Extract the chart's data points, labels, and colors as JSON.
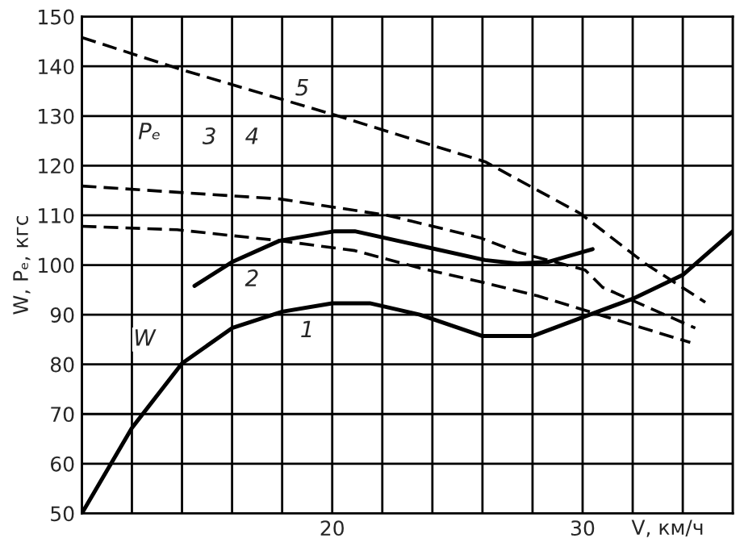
{
  "chart_data": {
    "type": "line",
    "xlabel": "V, км/ч",
    "ylabel": "W, Pₑ, кгс",
    "xlim": [
      10,
      36
    ],
    "ylim": [
      50,
      150
    ],
    "xticks": [
      {
        "value": 10,
        "label": null
      },
      {
        "value": 12,
        "label": null
      },
      {
        "value": 14,
        "label": null
      },
      {
        "value": 16,
        "label": null
      },
      {
        "value": 18,
        "label": null
      },
      {
        "value": 20,
        "label": "20"
      },
      {
        "value": 22,
        "label": null
      },
      {
        "value": 24,
        "label": null
      },
      {
        "value": 26,
        "label": null
      },
      {
        "value": 28,
        "label": null
      },
      {
        "value": 30,
        "label": "30"
      },
      {
        "value": 32,
        "label": null
      },
      {
        "value": 34,
        "label": null
      },
      {
        "value": 36,
        "label": null
      }
    ],
    "yticks": [
      50,
      60,
      70,
      80,
      90,
      100,
      110,
      120,
      130,
      140,
      150
    ],
    "grid": true,
    "series": [
      {
        "color": "#000000",
        "line_style": "solid",
        "x": [
          10,
          12,
          14,
          16,
          18,
          20,
          21.5,
          23.5,
          26,
          28,
          30.6,
          32,
          34,
          36
        ],
        "values": [
          50,
          67.2,
          80.2,
          87.3,
          90.6,
          92.3,
          92.3,
          90,
          85.7,
          85.7,
          90.6,
          93.2,
          98,
          106.8
        ]
      },
      {
        "color": "#000000",
        "line_style": "solid",
        "x": [
          14.5,
          16,
          17.9,
          20.1,
          20.9,
          23.5,
          26.1,
          27.4,
          28.6,
          30.4
        ],
        "values": [
          95.8,
          100.6,
          104.9,
          106.8,
          106.8,
          103.9,
          101,
          100.3,
          100.6,
          103.2
        ]
      },
      {
        "color": "#000000",
        "line_style": "dashed",
        "x": [
          10,
          13.8,
          17.9,
          20.9,
          23.5,
          26.1,
          28.2,
          34.3
        ],
        "values": [
          107.8,
          107.1,
          104.9,
          102.9,
          99.4,
          96.4,
          93.8,
          84.4
        ]
      },
      {
        "color": "#000000",
        "line_style": "dashed",
        "x": [
          10,
          17.9,
          20.9,
          22.2,
          25.9,
          27.4,
          30.1,
          30.8,
          34.5
        ],
        "values": [
          115.9,
          113.3,
          111,
          110,
          105.5,
          102.6,
          99,
          95.5,
          87.3
        ]
      },
      {
        "color": "#000000",
        "line_style": "dashed",
        "x": [
          10,
          14,
          20.1,
          26.1,
          29.9,
          32.5,
          34.9
        ],
        "values": [
          145.8,
          139.3,
          130.2,
          120.8,
          110.4,
          100.3,
          92.5
        ]
      }
    ],
    "annotations": [
      {
        "text": "5",
        "x": 18.8,
        "y": 135.4
      },
      {
        "text": "4",
        "x": 16.8,
        "y": 125.6
      },
      {
        "text": "3",
        "x": 15.1,
        "y": 125.6
      },
      {
        "text": "Pₑ",
        "x": 12.7,
        "y": 126.6
      },
      {
        "text": "2",
        "x": 16.8,
        "y": 97
      },
      {
        "text": "1",
        "x": 19,
        "y": 86.7
      },
      {
        "text": "W",
        "x": 12.5,
        "y": 85
      }
    ]
  }
}
